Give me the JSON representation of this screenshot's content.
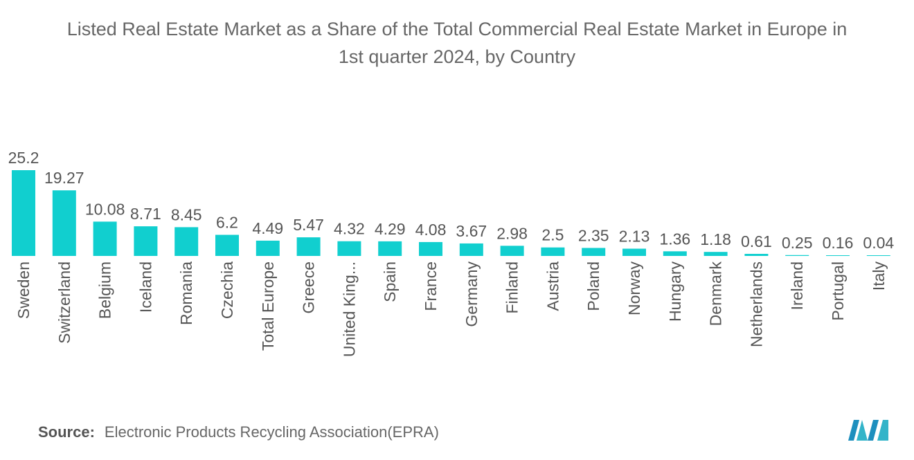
{
  "title_line1": "Listed Real Estate Market as a Share of the Total Commercial Real Estate Market in Europe in",
  "title_line2": "1st quarter 2024, by Country",
  "source_label": "Source:",
  "source_text": "Electronic Products Recycling Association(EPRA)",
  "colors": {
    "bar": "#11CFCF",
    "text": "#555555"
  },
  "chart_data": {
    "type": "bar",
    "title": "Listed Real Estate Market as a Share of the Total Commercial Real Estate Market in Europe in 1st quarter 2024, by Country",
    "xlabel": "",
    "ylabel": "",
    "ylim": [
      0,
      25.2
    ],
    "categories": [
      "Sweden",
      "Switzerland",
      "Belgium",
      "Iceland",
      "Romania",
      "Czechia",
      "Total Europe",
      "Greece",
      "United King...",
      "Spain",
      "France",
      "Germany",
      "Finland",
      "Austria",
      "Poland",
      "Norway",
      "Hungary",
      "Denmark",
      "Netherlands",
      "Ireland",
      "Portugal",
      "Italy"
    ],
    "values": [
      25.2,
      19.27,
      10.08,
      8.71,
      8.45,
      6.2,
      4.49,
      5.47,
      4.32,
      4.29,
      4.08,
      3.67,
      2.98,
      2.5,
      2.35,
      2.13,
      1.36,
      1.18,
      0.61,
      0.25,
      0.16,
      0.04
    ],
    "value_labels": [
      "25.2",
      "19.27",
      "10.08",
      "8.71",
      "8.45",
      "6.2",
      "4.49",
      "5.47",
      "4.32",
      "4.29",
      "4.08",
      "3.67",
      "2.98",
      "2.5",
      "2.35",
      "2.13",
      "1.36",
      "1.18",
      "0.61",
      "0.25",
      "0.16",
      "0.04"
    ]
  }
}
